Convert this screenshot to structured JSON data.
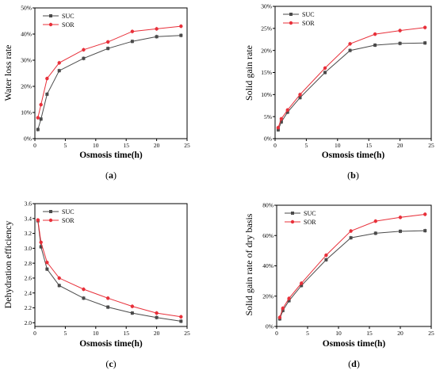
{
  "figure": {
    "colors": {
      "SUC": "#4a4a4a",
      "SOR": "#e8303a"
    }
  },
  "chart_data": [
    {
      "id": "a",
      "type": "line",
      "panel_label": "(a)",
      "xlabel": "Osmosis time(h)",
      "ylabel": "Water loss rate",
      "xlim": [
        0,
        25
      ],
      "ylim": [
        0,
        50
      ],
      "xticks": [
        "0",
        "5",
        "10",
        "15",
        "20",
        "25"
      ],
      "xtick_values": [
        0,
        5,
        10,
        15,
        20,
        25
      ],
      "yticks": [
        "0%",
        "10%",
        "20%",
        "30%",
        "40%",
        "50%"
      ],
      "ytick_values": [
        0,
        10,
        20,
        30,
        40,
        50
      ],
      "legend": "top-left",
      "x": [
        0.5,
        1,
        2,
        4,
        8,
        12,
        16,
        20,
        24
      ],
      "series": [
        {
          "name": "SUC",
          "values": [
            3.5,
            7.5,
            17,
            26,
            30.7,
            34.5,
            37.2,
            39,
            39.5
          ]
        },
        {
          "name": "SOR",
          "values": [
            8,
            13,
            23,
            29,
            34,
            37,
            41,
            42,
            43
          ]
        }
      ]
    },
    {
      "id": "b",
      "type": "line",
      "panel_label": "(b)",
      "xlabel": "Osmosis time(h)",
      "ylabel": "Solid gain rate",
      "xlim": [
        0,
        25
      ],
      "ylim": [
        0,
        30
      ],
      "xticks": [
        "0",
        "5",
        "10",
        "15",
        "20",
        "25"
      ],
      "xtick_values": [
        0,
        5,
        10,
        15,
        20,
        25
      ],
      "yticks": [
        "0%",
        "5%",
        "10%",
        "15%",
        "20%",
        "25%",
        "30%"
      ],
      "ytick_values": [
        0,
        5,
        10,
        15,
        20,
        25,
        30
      ],
      "legend": "top-left",
      "x": [
        0.5,
        1,
        2,
        4,
        8,
        12,
        16,
        20,
        24
      ],
      "series": [
        {
          "name": "SUC",
          "values": [
            2,
            3.8,
            6,
            9.3,
            15,
            20,
            21.2,
            21.6,
            21.7
          ]
        },
        {
          "name": "SOR",
          "values": [
            2.5,
            4.5,
            6.5,
            10,
            16,
            21.5,
            23.7,
            24.5,
            25.2
          ]
        }
      ]
    },
    {
      "id": "c",
      "type": "line",
      "panel_label": "(c)",
      "xlabel": "Osmosis time(h)",
      "ylabel": "Dehydration efficiency",
      "xlim": [
        0,
        25
      ],
      "ylim": [
        1.95,
        3.6
      ],
      "xticks": [
        "0",
        "5",
        "10",
        "15",
        "20",
        "25"
      ],
      "xtick_values": [
        0,
        5,
        10,
        15,
        20,
        25
      ],
      "yticks": [
        "2.0",
        "2.2",
        "2.4",
        "2.6",
        "2.8",
        "3.0",
        "3.2",
        "3.4",
        "3.6"
      ],
      "ytick_values": [
        2.0,
        2.2,
        2.4,
        2.6,
        2.8,
        3.0,
        3.2,
        3.4,
        3.6
      ],
      "legend": "top-left",
      "x": [
        0.5,
        1,
        2,
        4,
        8,
        12,
        16,
        20,
        24
      ],
      "series": [
        {
          "name": "SUC",
          "values": [
            3.37,
            3.02,
            2.72,
            2.5,
            2.33,
            2.21,
            2.13,
            2.07,
            2.02
          ]
        },
        {
          "name": "SOR",
          "values": [
            3.38,
            3.08,
            2.81,
            2.6,
            2.45,
            2.33,
            2.22,
            2.13,
            2.08
          ]
        }
      ]
    },
    {
      "id": "d",
      "type": "line",
      "panel_label": "(d)",
      "xlabel": "Osmosis time(h)",
      "ylabel": "Solid gain rate of dry basis",
      "xlim": [
        0,
        25
      ],
      "ylim": [
        0,
        80
      ],
      "xticks": [
        "0",
        "5",
        "10",
        "15",
        "20",
        "25"
      ],
      "xtick_values": [
        0,
        5,
        10,
        15,
        20,
        25
      ],
      "yticks": [
        "0%",
        "20%",
        "40%",
        "60%",
        "80%"
      ],
      "ytick_values": [
        0,
        20,
        40,
        60,
        80
      ],
      "legend": "top-left",
      "x": [
        0.5,
        1,
        2,
        4,
        8,
        12,
        16,
        20,
        24
      ],
      "series": [
        {
          "name": "SUC",
          "values": [
            5,
            10.5,
            17,
            27,
            44,
            58.5,
            61.5,
            62.8,
            63.2
          ]
        },
        {
          "name": "SOR",
          "values": [
            6,
            12,
            18.5,
            28.5,
            47,
            63,
            69.5,
            72,
            74
          ]
        }
      ]
    }
  ]
}
